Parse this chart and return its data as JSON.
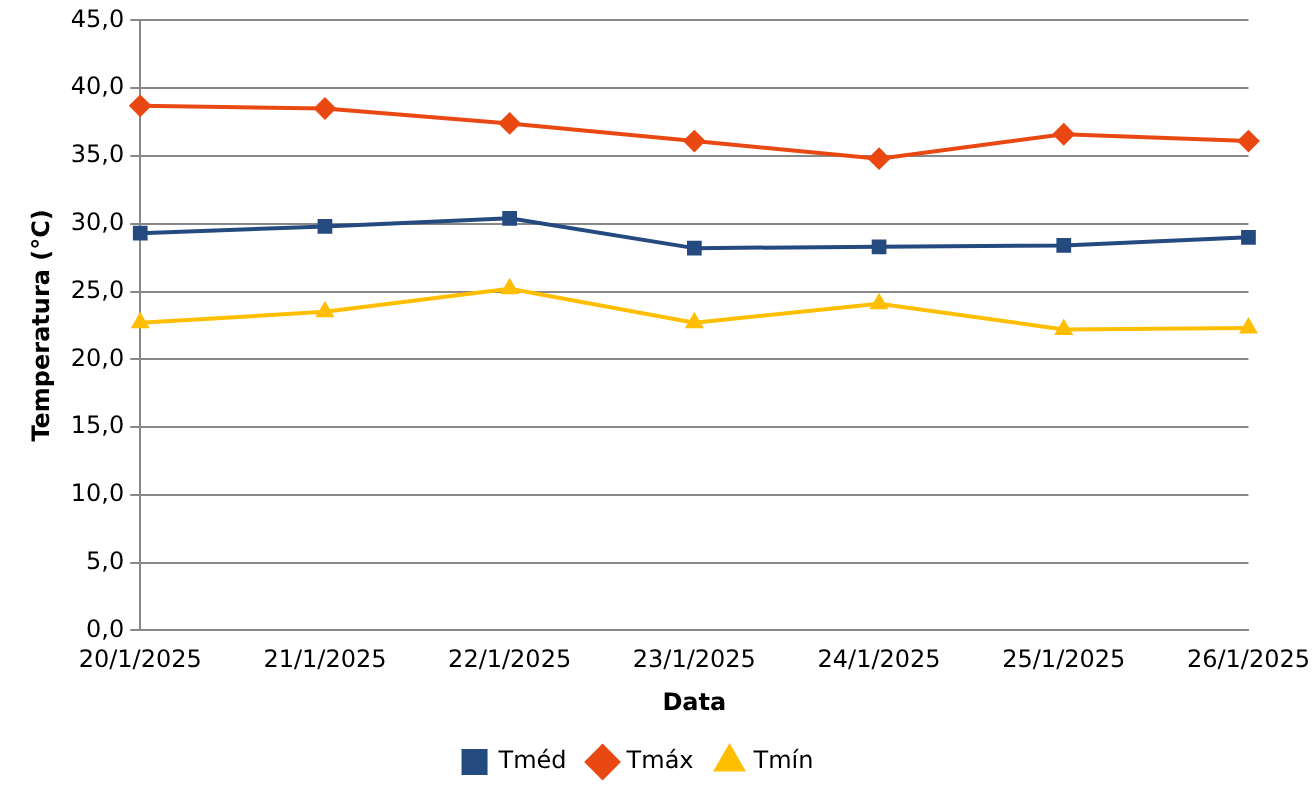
{
  "chart_data": {
    "type": "line",
    "xlabel": "Data",
    "ylabel": "Temperatura (°C)",
    "categories": [
      "20/1/2025",
      "21/1/2025",
      "22/1/2025",
      "23/1/2025",
      "24/1/2025",
      "25/1/2025",
      "26/1/2025"
    ],
    "series": [
      {
        "name": "Tméd",
        "color": "#254a7f",
        "marker": "square",
        "values": [
          29.3,
          29.8,
          30.4,
          28.2,
          28.3,
          28.4,
          29.0
        ]
      },
      {
        "name": "Tmáx",
        "color": "#ea4812",
        "marker": "diamond",
        "values": [
          38.7,
          38.5,
          37.4,
          36.1,
          34.8,
          36.6,
          36.1
        ]
      },
      {
        "name": "Tmín",
        "color": "#ffbf00",
        "marker": "triangle",
        "values": [
          22.7,
          23.5,
          25.2,
          22.7,
          24.1,
          22.2,
          22.3
        ]
      }
    ],
    "ylim": [
      0,
      45
    ],
    "yticks": [
      {
        "value": 0,
        "label": "0,0"
      },
      {
        "value": 5,
        "label": "5,0"
      },
      {
        "value": 10,
        "label": "10,0"
      },
      {
        "value": 15,
        "label": "15,0"
      },
      {
        "value": 20,
        "label": "20,0"
      },
      {
        "value": 25,
        "label": "25,0"
      },
      {
        "value": 30,
        "label": "30,0"
      },
      {
        "value": 35,
        "label": "35,0"
      },
      {
        "value": 40,
        "label": "40,0"
      },
      {
        "value": 45,
        "label": "45,0"
      }
    ],
    "grid": "y",
    "legend": "bottom",
    "line_style": "solid"
  }
}
